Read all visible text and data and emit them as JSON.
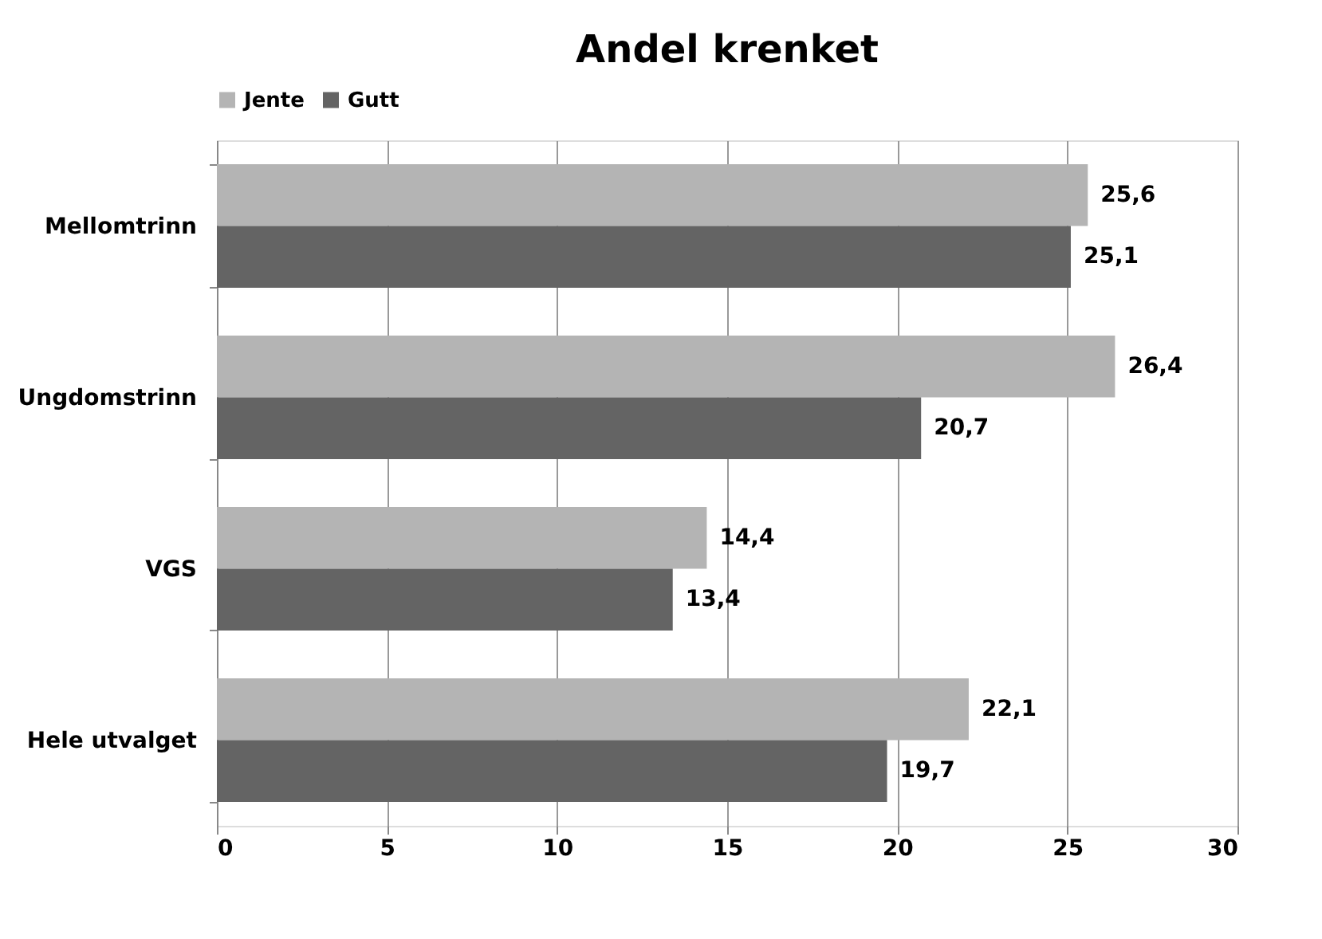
{
  "chart_data": {
    "type": "bar",
    "orientation": "horizontal",
    "title": "Andel krenket",
    "categories": [
      "Mellomtrinn",
      "Ungdomstrinn",
      "VGS",
      "Hele utvalget"
    ],
    "series": [
      {
        "name": "Jente",
        "color": "#b4b4b4",
        "values": [
          25.6,
          26.4,
          14.4,
          22.1
        ],
        "value_labels": [
          "25,6",
          "26,4",
          "14,4",
          "22,1"
        ]
      },
      {
        "name": "Gutt",
        "color": "#646464",
        "values": [
          25.1,
          20.7,
          13.4,
          19.7
        ],
        "value_labels": [
          "25,1",
          "20,7",
          "13,4",
          "19,7"
        ]
      }
    ],
    "xlim": [
      0,
      30
    ],
    "xticks": [
      0,
      5,
      10,
      15,
      20,
      25,
      30
    ],
    "grid": "x",
    "legend": "top"
  }
}
